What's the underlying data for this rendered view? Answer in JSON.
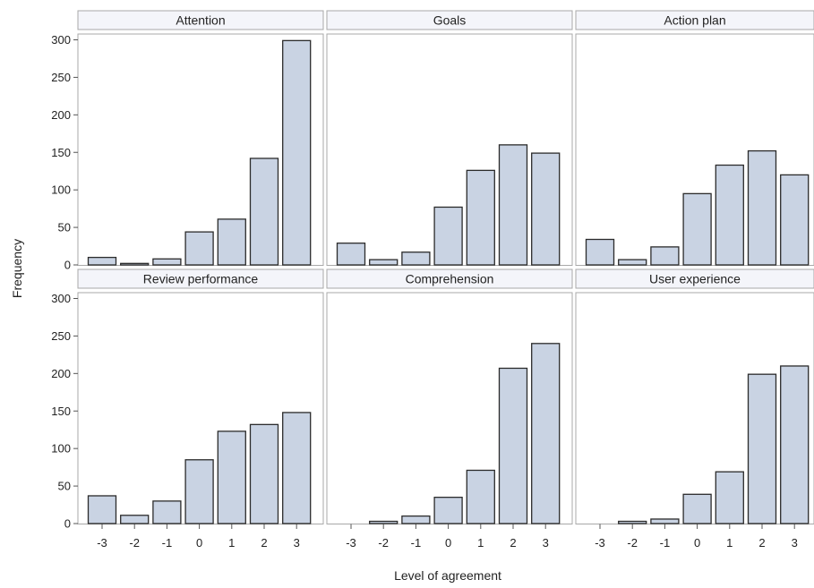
{
  "chart_data": {
    "type": "bar",
    "layout": "facet-grid-2x3",
    "xlabel": "Level of agreement",
    "ylabel": "Frequency",
    "categories": [
      "-3",
      "-2",
      "-1",
      "0",
      "1",
      "2",
      "3"
    ],
    "ylim": [
      0,
      310
    ],
    "yticks": [
      0,
      50,
      100,
      150,
      200,
      250,
      300
    ],
    "grid": false,
    "bar_color": "#c9d3e3",
    "bar_edge_color": "#2b2b2b",
    "panels": [
      {
        "title": "Attention",
        "values": [
          10,
          2,
          8,
          44,
          61,
          142,
          299
        ]
      },
      {
        "title": "Goals",
        "values": [
          29,
          7,
          17,
          77,
          126,
          160,
          149
        ]
      },
      {
        "title": "Action plan",
        "values": [
          34,
          7,
          24,
          95,
          133,
          152,
          120
        ]
      },
      {
        "title": "Review performance",
        "values": [
          37,
          11,
          30,
          85,
          123,
          132,
          148
        ]
      },
      {
        "title": "Comprehension",
        "values": [
          0,
          3,
          10,
          35,
          71,
          207,
          240
        ]
      },
      {
        "title": "User experience",
        "values": [
          0,
          3,
          6,
          39,
          69,
          199,
          210
        ]
      }
    ]
  }
}
